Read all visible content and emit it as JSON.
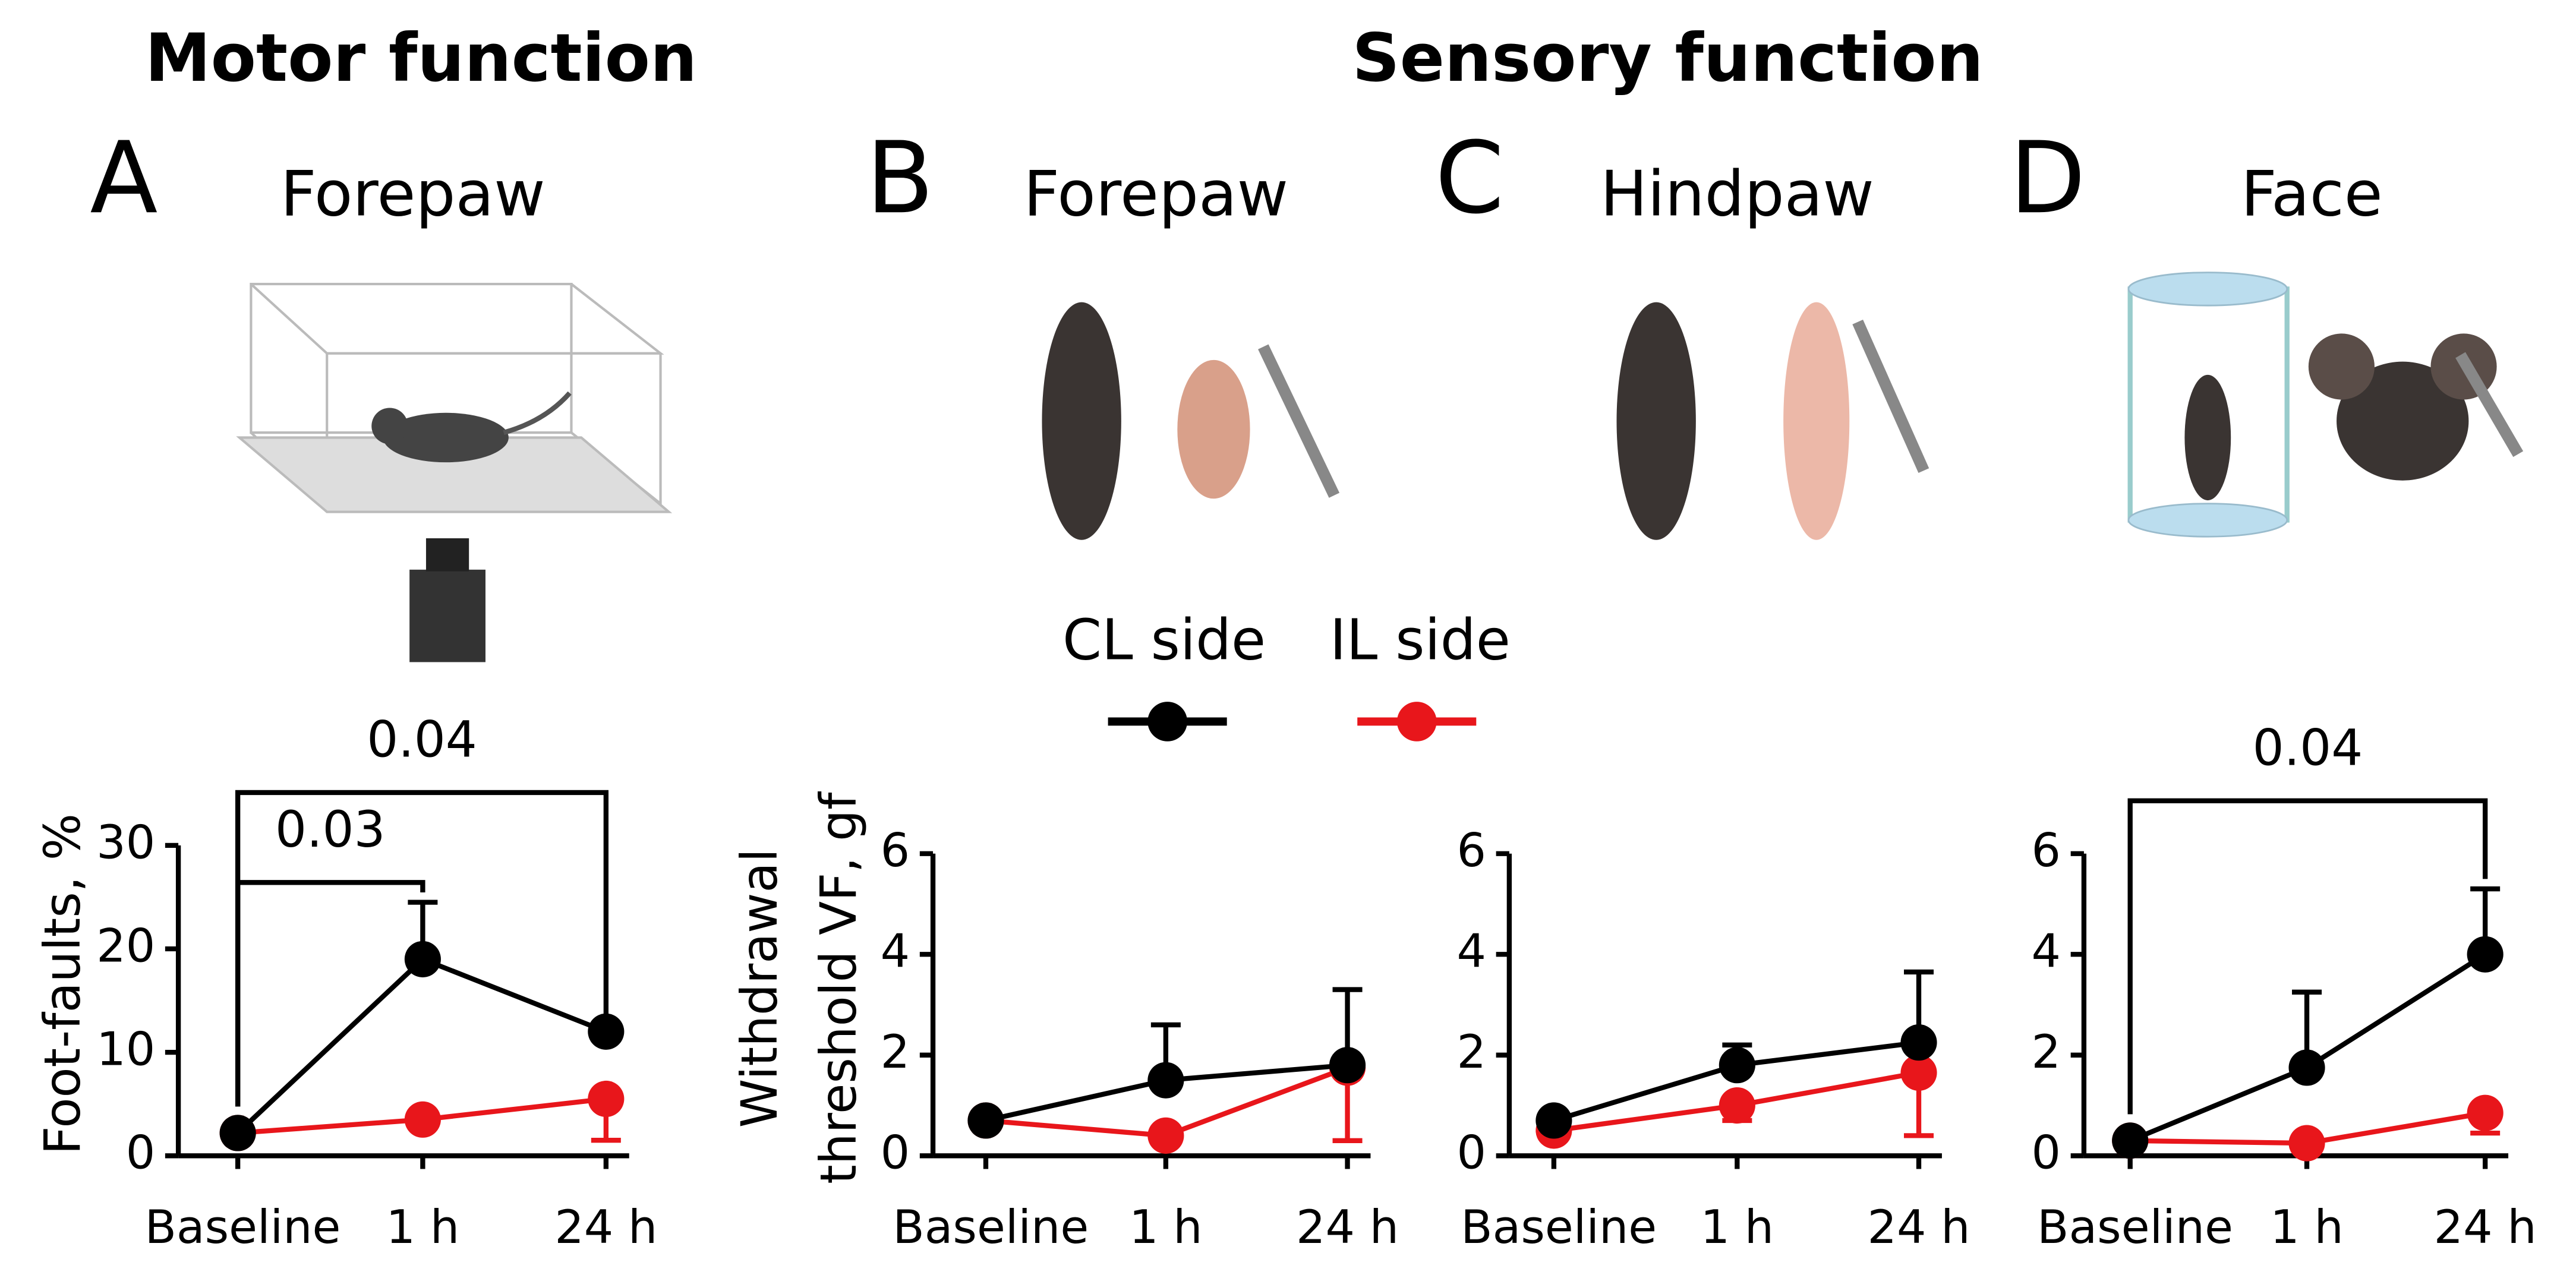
{
  "headers": {
    "motor": "Motor function",
    "sensory": "Sensory function"
  },
  "chart_data": [
    {
      "type": "line",
      "panel": "A",
      "title": "Forepaw",
      "y_label": "Foot-faults, %",
      "categories": [
        "Baseline",
        "1 h",
        "24 h"
      ],
      "ylim": [
        0,
        30
      ],
      "yticks": [
        0,
        10,
        20,
        30
      ],
      "series": [
        {
          "name": "CL side",
          "color": "#000000",
          "values": [
            2.2,
            19,
            12
          ],
          "errors": [
            0.3,
            5.5,
            0.5
          ],
          "error_direction": "up"
        },
        {
          "name": "IL side",
          "color": "#e8161b",
          "values": [
            2.2,
            3.5,
            5.5
          ],
          "errors": [
            0.3,
            0.5,
            4
          ],
          "error_direction": "down"
        }
      ],
      "comparisons": [
        {
          "label": "0.03",
          "between": [
            "Baseline",
            "1 h"
          ]
        },
        {
          "label": "0.04",
          "between": [
            "Baseline",
            "24 h"
          ]
        }
      ]
    },
    {
      "type": "line",
      "panel": "B",
      "title": "Forepaw",
      "y_label": [
        "Withdrawal",
        "threshold VF, gf"
      ],
      "categories": [
        "Baseline",
        "1 h",
        "24 h"
      ],
      "ylim": [
        0,
        6
      ],
      "yticks": [
        0,
        2,
        4,
        6
      ],
      "series": [
        {
          "name": "CL side",
          "color": "#000000",
          "values": [
            0.7,
            1.5,
            1.8
          ],
          "errors": [
            0.1,
            1.1,
            1.5
          ],
          "error_direction": "up"
        },
        {
          "name": "IL side",
          "color": "#e8161b",
          "values": [
            0.7,
            0.4,
            1.75
          ],
          "errors": [
            0.1,
            0.1,
            1.45
          ],
          "error_direction": "down"
        }
      ]
    },
    {
      "type": "line",
      "panel": "C",
      "title": "Hindpaw",
      "categories": [
        "Baseline",
        "1 h",
        "24 h"
      ],
      "ylim": [
        0,
        6
      ],
      "yticks": [
        0,
        2,
        4,
        6
      ],
      "series": [
        {
          "name": "CL side",
          "color": "#000000",
          "values": [
            0.7,
            1.8,
            2.25
          ],
          "errors": [
            0.1,
            0.4,
            1.4
          ],
          "error_direction": "up"
        },
        {
          "name": "IL side",
          "color": "#e8161b",
          "values": [
            0.5,
            1.0,
            1.65
          ],
          "errors": [
            0.1,
            0.3,
            1.25
          ],
          "error_direction": "down"
        }
      ]
    },
    {
      "type": "line",
      "panel": "D",
      "title": "Face",
      "categories": [
        "Baseline",
        "1 h",
        "24 h"
      ],
      "ylim": [
        0,
        6
      ],
      "yticks": [
        0,
        2,
        4,
        6
      ],
      "series": [
        {
          "name": "CL side",
          "color": "#000000",
          "values": [
            0.3,
            1.75,
            4.0
          ],
          "errors": [
            0.1,
            1.5,
            1.3
          ],
          "error_direction": "up"
        },
        {
          "name": "IL side",
          "color": "#e8161b",
          "values": [
            0.3,
            0.25,
            0.85
          ],
          "errors": [
            0.05,
            0.05,
            0.4
          ],
          "error_direction": "down"
        }
      ],
      "comparisons": [
        {
          "label": "0.04",
          "between": [
            "Baseline",
            "24 h"
          ]
        }
      ]
    }
  ]
}
